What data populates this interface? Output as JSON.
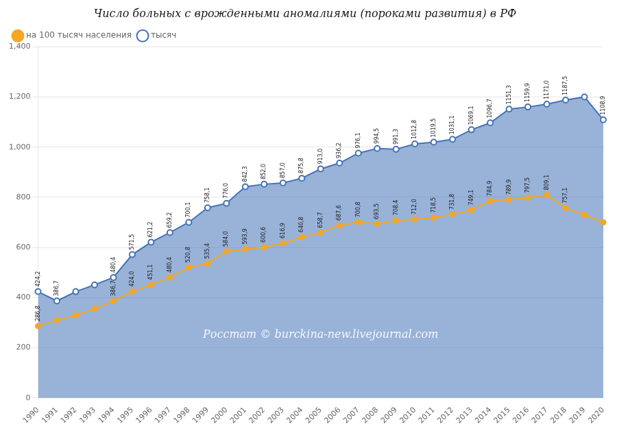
{
  "chart_data": {
    "type": "line",
    "title": "Число больных с врожденными аномалиями (пороками развития) в РФ",
    "categories": [
      "1990",
      "1991",
      "1992",
      "1993",
      "1994",
      "1995",
      "1996",
      "1997",
      "1998",
      "1999",
      "2000",
      "2001",
      "2002",
      "2003",
      "2004",
      "2005",
      "2006",
      "2007",
      "2008",
      "2009",
      "2010",
      "2011",
      "2012",
      "2013",
      "2014",
      "2015",
      "2016",
      "2017",
      "2018",
      "2019",
      "2020"
    ],
    "series": [
      {
        "name": "тысяч",
        "type": "area",
        "color": "#4472b8",
        "marker": "circle",
        "values": [
          424.2,
          386.7,
          424.0,
          451.1,
          480.4,
          571.5,
          621.2,
          659.2,
          700.1,
          758.1,
          776.0,
          842.3,
          852.0,
          857.0,
          875.8,
          913.0,
          936.2,
          976.1,
          994.5,
          991.3,
          1012.8,
          1019.5,
          1031.1,
          1069.1,
          1096.7,
          1151.3,
          1159.9,
          1171.0,
          1187.5,
          1200.0,
          1108.9
        ],
        "value_labels": [
          "424,2",
          "386,7",
          null,
          null,
          "480,4",
          "571,5",
          "621,2",
          "659,2",
          "700,1",
          "758,1",
          "776,0",
          "842,3",
          "852,0",
          "857,0",
          "875,8",
          "913,0",
          "936,2",
          "976,1",
          "994,5",
          "991,3",
          "1012,8",
          "1019,5",
          "1031,1",
          "1069,1",
          "1096,7",
          "1151,3",
          "1159,9",
          "1171,0",
          "1187,5",
          null,
          "1108,9"
        ]
      },
      {
        "name": "на 100 тысяч населения",
        "type": "line",
        "color": "#f5a623",
        "marker": "circle",
        "values": [
          286.8,
          310.0,
          330.0,
          355.0,
          386.7,
          424.0,
          451.1,
          480.4,
          520.8,
          535.4,
          584.0,
          593.9,
          600.6,
          616.9,
          640.8,
          658.7,
          687.6,
          700.8,
          693.5,
          708.4,
          712.0,
          718.5,
          731.8,
          749.1,
          784.9,
          789.9,
          797.5,
          809.1,
          757.1,
          730.0,
          700.0
        ],
        "value_labels": [
          "286,8",
          null,
          null,
          null,
          "386,7",
          "424,0",
          "451,1",
          "480,4",
          "520,8",
          "535,4",
          "584,0",
          "593,9",
          "600,6",
          "616,9",
          "640,8",
          "658,7",
          "687,6",
          "700,8",
          "693,5",
          "708,4",
          "712,0",
          "718,5",
          "731,8",
          "749,1",
          "784,9",
          "789,9",
          "797,5",
          "809,1",
          "757,1",
          null,
          null
        ]
      }
    ],
    "annotations": [
      "Росстат © burckina-new.livejournal.com"
    ],
    "ylim": [
      0,
      1400
    ],
    "yticks": [
      0,
      200,
      400,
      600,
      800,
      1000,
      1200,
      1400
    ],
    "grid": true,
    "legend": "upper left",
    "data_labels": true
  }
}
